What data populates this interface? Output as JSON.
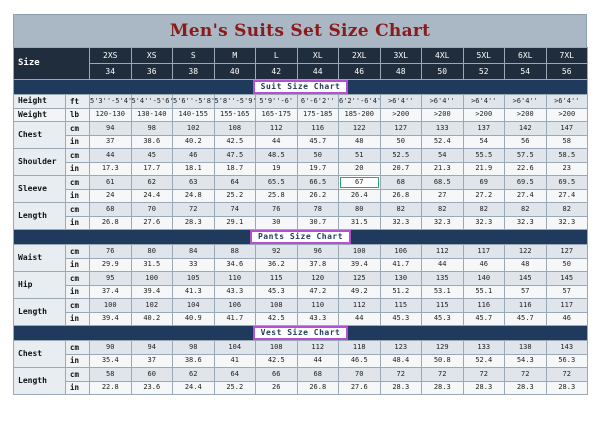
{
  "title": "Men's Suits Set Size Chart",
  "header": {
    "label": "Size",
    "sizes": [
      "2XS",
      "XS",
      "S",
      "M",
      "L",
      "XL",
      "2XL",
      "3XL",
      "4XL",
      "5XL",
      "6XL",
      "7XL"
    ],
    "eu": [
      "34",
      "36",
      "38",
      "40",
      "42",
      "44",
      "46",
      "48",
      "50",
      "52",
      "54",
      "56"
    ]
  },
  "sections": [
    {
      "title": "Suit Size Chart",
      "groups": [
        {
          "label": "Height",
          "rows": [
            {
              "unit": "ft",
              "values": [
                "5'3''-5'4''",
                "5'4''-5'6''",
                "5'6''-5'8''",
                "5'8''-5'9''",
                "5'9''-6'",
                "6'-6'2''",
                "6'2''-6'4''",
                ">6'4''",
                ">6'4''",
                ">6'4''",
                ">6'4''",
                ">6'4''"
              ]
            }
          ]
        },
        {
          "label": "Weight",
          "rows": [
            {
              "unit": "lb",
              "values": [
                "120-130",
                "130-140",
                "140-155",
                "155-165",
                "165-175",
                "175-185",
                "185-200",
                ">200",
                ">200",
                ">200",
                ">200",
                ">200"
              ]
            }
          ]
        },
        {
          "label": "Chest",
          "rows": [
            {
              "unit": "cm",
              "values": [
                "94",
                "98",
                "102",
                "108",
                "112",
                "116",
                "122",
                "127",
                "133",
                "137",
                "142",
                "147"
              ]
            },
            {
              "unit": "in",
              "values": [
                "37",
                "38.6",
                "40.2",
                "42.5",
                "44",
                "45.7",
                "48",
                "50",
                "52.4",
                "54",
                "56",
                "58"
              ]
            }
          ]
        },
        {
          "label": "Shoulder",
          "rows": [
            {
              "unit": "cm",
              "values": [
                "44",
                "45",
                "46",
                "47.5",
                "48.5",
                "50",
                "51",
                "52.5",
                "54",
                "55.5",
                "57.5",
                "58.5"
              ]
            },
            {
              "unit": "in",
              "values": [
                "17.3",
                "17.7",
                "18.1",
                "18.7",
                "19",
                "19.7",
                "20",
                "20.7",
                "21.3",
                "21.9",
                "22.6",
                "23"
              ]
            }
          ]
        },
        {
          "label": "Sleeve",
          "rows": [
            {
              "unit": "cm",
              "values": [
                "61",
                "62",
                "63",
                "64",
                "65.5",
                "66.5",
                "67",
                "68",
                "68.5",
                "69",
                "69.5",
                "69.5"
              ]
            },
            {
              "unit": "in",
              "values": [
                "24",
                "24.4",
                "24.8",
                "25.2",
                "25.8",
                "26.2",
                "26.4",
                "26.8",
                "27",
                "27.2",
                "27.4",
                "27.4"
              ]
            }
          ]
        },
        {
          "label": "Length",
          "rows": [
            {
              "unit": "cm",
              "values": [
                "68",
                "70",
                "72",
                "74",
                "76",
                "78",
                "80",
                "82",
                "82",
                "82",
                "82",
                "82"
              ]
            },
            {
              "unit": "in",
              "values": [
                "26.8",
                "27.6",
                "28.3",
                "29.1",
                "30",
                "30.7",
                "31.5",
                "32.3",
                "32.3",
                "32.3",
                "32.3",
                "32.3"
              ]
            }
          ]
        }
      ]
    },
    {
      "title": "Pants Size Chart",
      "groups": [
        {
          "label": "Waist",
          "rows": [
            {
              "unit": "cm",
              "values": [
                "76",
                "80",
                "84",
                "88",
                "92",
                "96",
                "100",
                "106",
                "112",
                "117",
                "122",
                "127"
              ]
            },
            {
              "unit": "in",
              "values": [
                "29.9",
                "31.5",
                "33",
                "34.6",
                "36.2",
                "37.8",
                "39.4",
                "41.7",
                "44",
                "46",
                "48",
                "50"
              ]
            }
          ]
        },
        {
          "label": "Hip",
          "rows": [
            {
              "unit": "cm",
              "values": [
                "95",
                "100",
                "105",
                "110",
                "115",
                "120",
                "125",
                "130",
                "135",
                "140",
                "145",
                "145"
              ]
            },
            {
              "unit": "in",
              "values": [
                "37.4",
                "39.4",
                "41.3",
                "43.3",
                "45.3",
                "47.2",
                "49.2",
                "51.2",
                "53.1",
                "55.1",
                "57",
                "57"
              ]
            }
          ]
        },
        {
          "label": "Length",
          "rows": [
            {
              "unit": "cm",
              "values": [
                "100",
                "102",
                "104",
                "106",
                "108",
                "110",
                "112",
                "115",
                "115",
                "116",
                "116",
                "117"
              ]
            },
            {
              "unit": "in",
              "values": [
                "39.4",
                "40.2",
                "40.9",
                "41.7",
                "42.5",
                "43.3",
                "44",
                "45.3",
                "45.3",
                "45.7",
                "45.7",
                "46"
              ]
            }
          ]
        }
      ]
    },
    {
      "title": "Vest Size Chart",
      "groups": [
        {
          "label": "Chest",
          "rows": [
            {
              "unit": "cm",
              "values": [
                "90",
                "94",
                "98",
                "104",
                "108",
                "112",
                "118",
                "123",
                "129",
                "133",
                "138",
                "143"
              ]
            },
            {
              "unit": "in",
              "values": [
                "35.4",
                "37",
                "38.6",
                "41",
                "42.5",
                "44",
                "46.5",
                "48.4",
                "50.8",
                "52.4",
                "54.3",
                "56.3"
              ]
            }
          ]
        },
        {
          "label": "Length",
          "rows": [
            {
              "unit": "cm",
              "values": [
                "58",
                "60",
                "62",
                "64",
                "66",
                "68",
                "70",
                "72",
                "72",
                "72",
                "72",
                "72"
              ]
            },
            {
              "unit": "in",
              "values": [
                "22.8",
                "23.6",
                "24.4",
                "25.2",
                "26",
                "26.8",
                "27.6",
                "28.3",
                "28.3",
                "28.3",
                "28.3",
                "28.3"
              ]
            }
          ]
        }
      ]
    }
  ]
}
